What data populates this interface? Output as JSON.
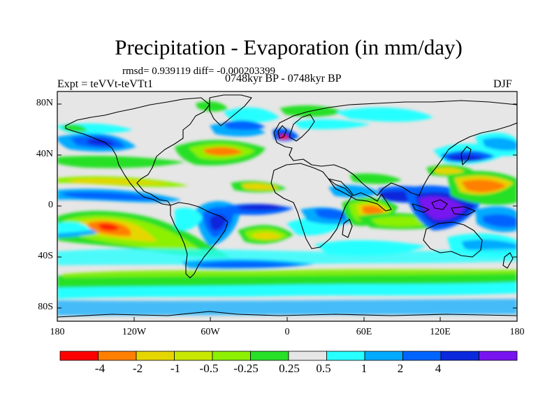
{
  "title": "Precipitation - Evaporation (in mm/day)",
  "stats_line": "rmsd= 0.939119 diff= -0.000203399",
  "period_line": "0748kyr BP - 0748kyr BP",
  "experiment_label": "Expt = teVVt-teVTt1",
  "season": "DJF",
  "y_ticks": [
    "80N",
    "40N",
    "0",
    "40S",
    "80S"
  ],
  "x_ticks": [
    "180",
    "120W",
    "60W",
    "0",
    "60E",
    "120E",
    "180"
  ],
  "colorbar": {
    "colors": [
      "#ff0000",
      "#ff8000",
      "#e6d600",
      "#c8e800",
      "#8cf000",
      "#28e028",
      "#e6e6e6",
      "#28ffff",
      "#00aaff",
      "#0064ff",
      "#0a28dc",
      "#7814f0"
    ],
    "labels": [
      "-4",
      "-2",
      "-1",
      "-0.5",
      "-0.25",
      "0.25",
      "0.5",
      "1",
      "2",
      "4"
    ]
  },
  "map": {
    "background_color": "#e6e6e6",
    "lat_range": [
      -90,
      90
    ],
    "lon_range": [
      -180,
      180
    ]
  }
}
